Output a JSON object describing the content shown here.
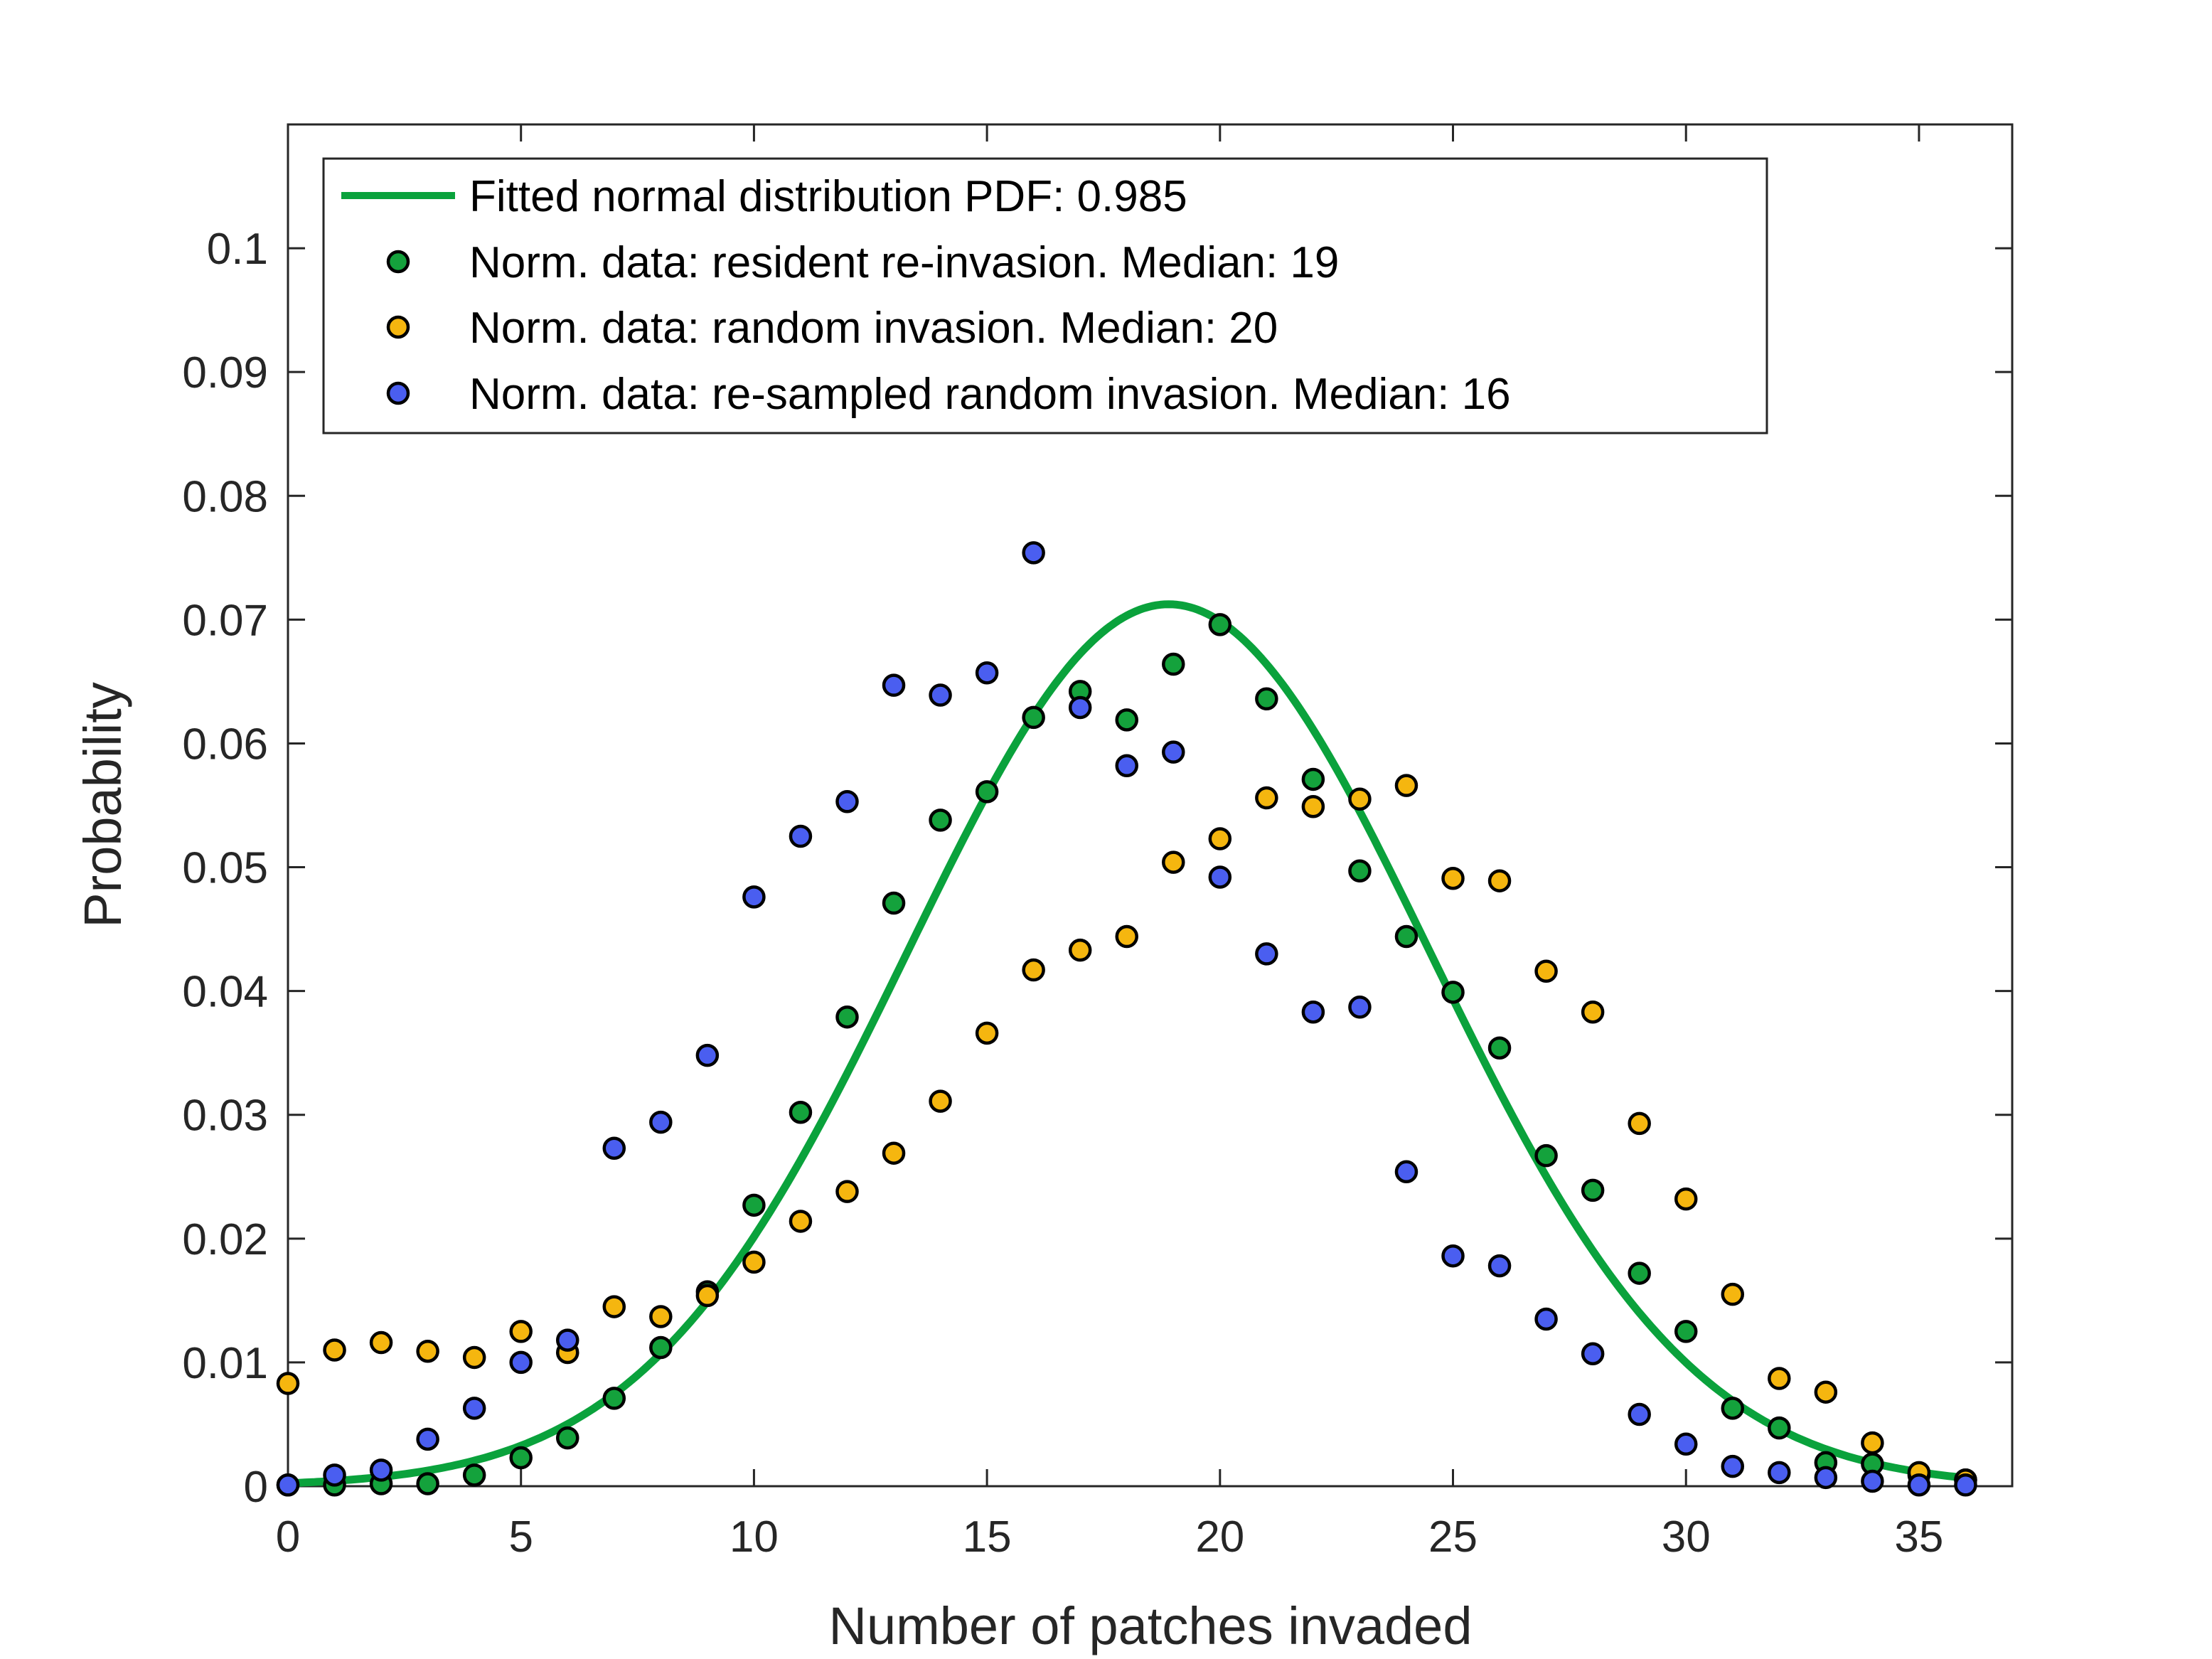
{
  "chart_data": {
    "type": "scatter",
    "title": "",
    "xlabel": "Number of patches invaded",
    "ylabel": "Probability",
    "xlim": [
      0,
      37
    ],
    "ylim": [
      0,
      0.11
    ],
    "xticks": [
      0,
      5,
      10,
      15,
      20,
      25,
      30,
      35
    ],
    "yticks": [
      0,
      0.01,
      0.02,
      0.03,
      0.04,
      0.05,
      0.06,
      0.07,
      0.08,
      0.09,
      0.1
    ],
    "xtick_labels": [
      "0",
      "5",
      "10",
      "15",
      "20",
      "25",
      "30",
      "35"
    ],
    "ytick_labels": [
      "0",
      "0.01",
      "0.02",
      "0.03",
      "0.04",
      "0.05",
      "0.06",
      "0.07",
      "0.08",
      "0.09",
      "0.1"
    ],
    "grid": false,
    "legend_position": "top-left",
    "fit": {
      "name": "Fitted normal distribution PDF: 0.985",
      "type": "line",
      "color": "#0aa23c",
      "mu": 18.9,
      "sigma": 5.6,
      "x_range": [
        0,
        36
      ]
    },
    "series": [
      {
        "name": "Norm. data: resident re-invasion. Median: 19",
        "color": "#14a23c",
        "x": [
          0,
          1,
          2,
          3,
          4,
          5,
          6,
          7,
          8,
          9,
          10,
          11,
          12,
          13,
          14,
          15,
          16,
          17,
          18,
          19,
          20,
          21,
          22,
          23,
          24,
          25,
          26,
          27,
          28,
          29,
          30,
          31,
          32,
          33,
          34,
          35,
          36
        ],
        "y": [
          0.0001,
          0.0001,
          0.0002,
          0.0002,
          0.0009,
          0.0023,
          0.0039,
          0.0071,
          0.0112,
          0.0157,
          0.0227,
          0.0302,
          0.0379,
          0.0471,
          0.0538,
          0.0561,
          0.0621,
          0.0642,
          0.0619,
          0.0664,
          0.0696,
          0.0636,
          0.0571,
          0.0497,
          0.0444,
          0.0399,
          0.0354,
          0.0267,
          0.0239,
          0.0172,
          0.0125,
          0.0063,
          0.0047,
          0.0019,
          0.0018,
          0.0009,
          0.0005
        ]
      },
      {
        "name": "Norm. data: random invasion. Median: 20",
        "color": "#f5b60f",
        "x": [
          0,
          1,
          2,
          3,
          4,
          5,
          6,
          7,
          8,
          9,
          10,
          11,
          12,
          13,
          14,
          15,
          16,
          17,
          18,
          19,
          20,
          21,
          22,
          23,
          24,
          25,
          26,
          27,
          28,
          29,
          30,
          31,
          32,
          33,
          34,
          35,
          36
        ],
        "y": [
          0.0083,
          0.011,
          0.0116,
          0.0109,
          0.0104,
          0.0125,
          0.0108,
          0.0145,
          0.0137,
          0.0154,
          0.0181,
          0.0214,
          0.0238,
          0.0269,
          0.0311,
          0.0366,
          0.0417,
          0.0433,
          0.0444,
          0.0504,
          0.0523,
          0.0556,
          0.0549,
          0.0555,
          0.0566,
          0.0491,
          0.0489,
          0.0416,
          0.0383,
          0.0293,
          0.0232,
          0.0155,
          0.0087,
          0.0076,
          0.0035,
          0.0011,
          0.0005
        ]
      },
      {
        "name": "Norm. data: re-sampled random invasion. Median: 16",
        "color": "#4a5ef0",
        "x": [
          0,
          1,
          2,
          3,
          4,
          5,
          6,
          7,
          8,
          9,
          10,
          11,
          12,
          13,
          14,
          15,
          16,
          17,
          18,
          19,
          20,
          21,
          22,
          23,
          24,
          25,
          26,
          27,
          28,
          29,
          30,
          31,
          32,
          33,
          34,
          35,
          36
        ],
        "y": [
          0.0001,
          0.0009,
          0.0013,
          0.0038,
          0.0063,
          0.01,
          0.0118,
          0.0273,
          0.0294,
          0.0348,
          0.0476,
          0.0525,
          0.0553,
          0.0647,
          0.0639,
          0.0657,
          0.0754,
          0.0629,
          0.0582,
          0.0593,
          0.0492,
          0.043,
          0.0383,
          0.0387,
          0.0254,
          0.0186,
          0.0178,
          0.0135,
          0.0107,
          0.0058,
          0.0034,
          0.0016,
          0.0011,
          0.0007,
          0.0004,
          0.0001,
          0.0001
        ]
      }
    ]
  }
}
